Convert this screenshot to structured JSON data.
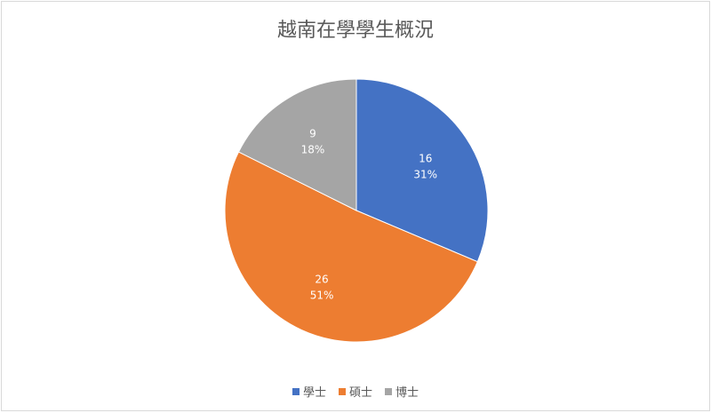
{
  "chart_data": {
    "type": "pie",
    "title": "越南在學學生概況",
    "categories": [
      "學士",
      "碩士",
      "博士"
    ],
    "values": [
      16,
      26,
      9
    ],
    "percent_labels": [
      "31%",
      "51%",
      "18%"
    ],
    "colors": [
      "#4472c4",
      "#ed7d31",
      "#a5a5a5"
    ],
    "legend_position": "bottom",
    "start_angle": "12 o'clock, clockwise"
  }
}
